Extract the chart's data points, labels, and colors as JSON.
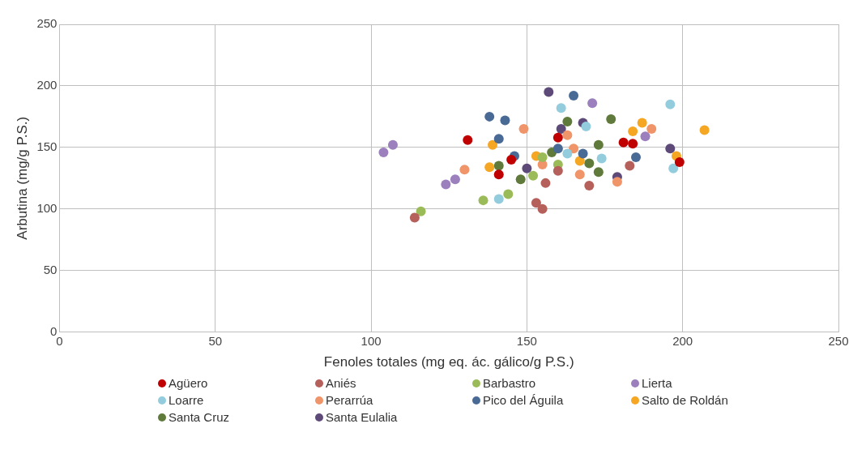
{
  "chart_data": {
    "type": "scatter",
    "xlabel": "Fenoles totales (mg eq. ác. gálico/g P.S.)",
    "ylabel": "Arbutina (mg/g P.S.)",
    "xlim": [
      0,
      250
    ],
    "xticks": [
      0,
      50,
      100,
      150,
      200,
      250
    ],
    "ylim": [
      0,
      250
    ],
    "yticks": [
      0,
      50,
      100,
      150,
      200,
      250
    ],
    "grid": true,
    "legend": "bottom",
    "marker": "circle",
    "series": [
      {
        "name": "Agüero",
        "color": "#c00000",
        "x": [
          131,
          141,
          145,
          160,
          181,
          184,
          199
        ],
        "values": [
          156,
          128,
          140,
          158,
          154,
          153,
          138
        ]
      },
      {
        "name": "Aniés",
        "color": "#b5605a",
        "x": [
          114,
          153,
          155,
          156,
          160,
          170,
          183
        ],
        "values": [
          93,
          105,
          100,
          121,
          131,
          119,
          135
        ]
      },
      {
        "name": "Barbastro",
        "color": "#9bbb59",
        "x": [
          116,
          136,
          144,
          152,
          160,
          155
        ],
        "values": [
          98,
          107,
          112,
          127,
          136,
          142
        ]
      },
      {
        "name": "Lierta",
        "color": "#9b80bd",
        "x": [
          104,
          107,
          124,
          127,
          171,
          188
        ],
        "values": [
          146,
          152,
          120,
          124,
          186,
          159
        ]
      },
      {
        "name": "Loarre",
        "color": "#93cddd",
        "x": [
          141,
          161,
          169,
          174,
          163,
          196,
          197
        ],
        "values": [
          108,
          182,
          167,
          141,
          145,
          185,
          133
        ]
      },
      {
        "name": "Perarrúa",
        "color": "#f0956a",
        "x": [
          130,
          149,
          155,
          163,
          167,
          165,
          190,
          179
        ],
        "values": [
          132,
          165,
          136,
          160,
          128,
          149,
          165,
          122
        ]
      },
      {
        "name": "Pico del Águila",
        "color": "#4a6a96",
        "x": [
          138,
          143,
          141,
          146,
          165,
          160,
          168,
          185
        ],
        "values": [
          175,
          172,
          157,
          143,
          192,
          149,
          145,
          142
        ]
      },
      {
        "name": "Salto de Roldán",
        "color": "#f5a623",
        "x": [
          139,
          138,
          153,
          167,
          184,
          187,
          198,
          207
        ],
        "values": [
          152,
          134,
          143,
          139,
          163,
          170,
          143,
          164
        ]
      },
      {
        "name": "Santa Cruz",
        "color": "#5f7a3a",
        "x": [
          141,
          148,
          158,
          163,
          170,
          173,
          177,
          173
        ],
        "values": [
          135,
          124,
          146,
          171,
          137,
          152,
          173,
          130
        ]
      },
      {
        "name": "Santa Eulalia",
        "color": "#5e4a78",
        "x": [
          150,
          157,
          168,
          161,
          179,
          196
        ],
        "values": [
          133,
          195,
          170,
          165,
          126,
          149
        ]
      }
    ]
  }
}
